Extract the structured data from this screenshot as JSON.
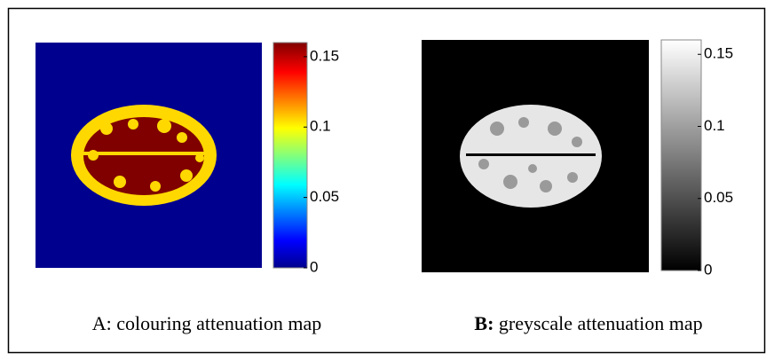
{
  "panels": [
    {
      "caption": "A: colouring attenuation map",
      "colorbar": {
        "lim": [
          0,
          0.16
        ],
        "ticks": [
          0,
          0.05,
          0.1,
          0.15
        ]
      }
    },
    {
      "caption_label": "B:",
      "caption_text": "greyscale attenuation map",
      "colorbar": {
        "lim": [
          0,
          0.16
        ],
        "ticks": [
          0,
          0.05,
          0.1,
          0.15
        ]
      }
    }
  ]
}
